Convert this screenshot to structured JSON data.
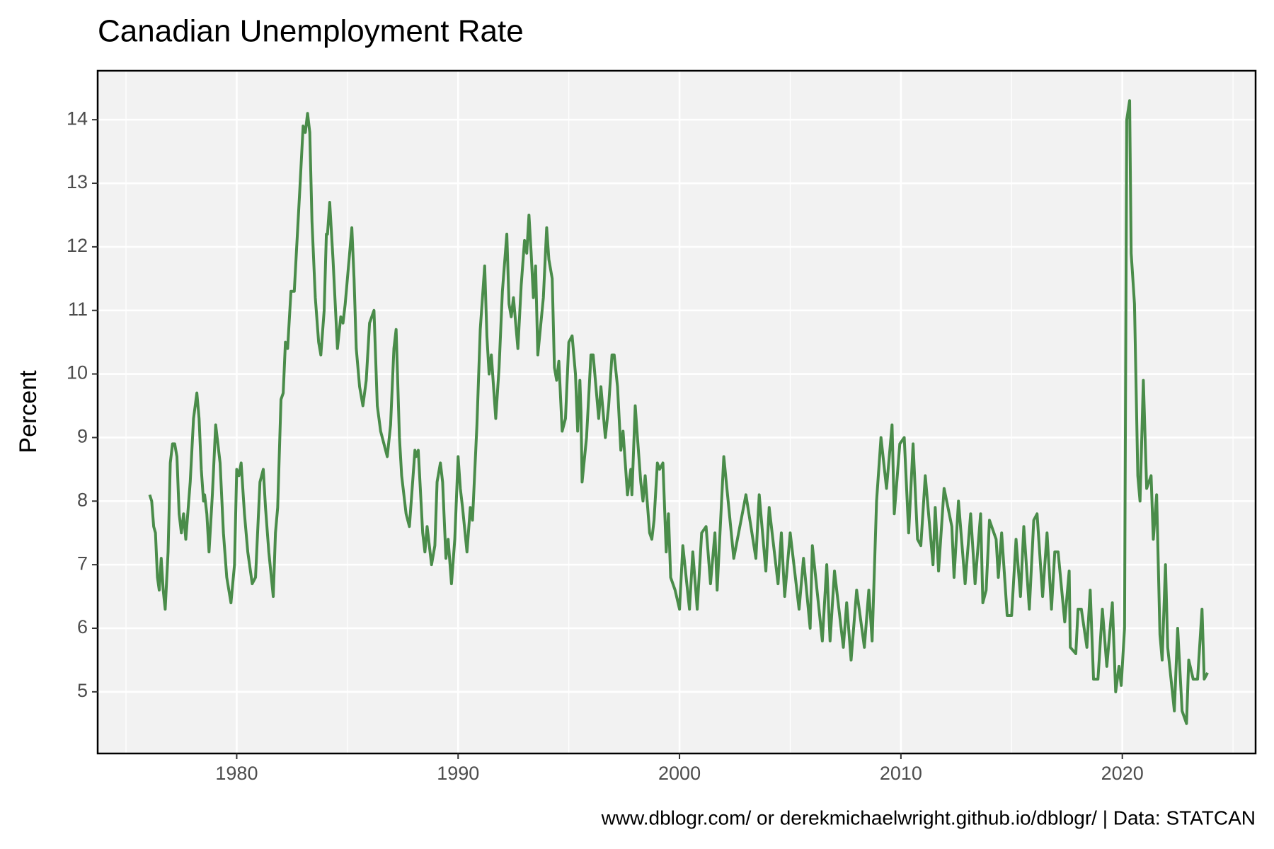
{
  "chart_data": {
    "type": "line",
    "title": "Canadian Unemployment Rate",
    "y_label": "Percent",
    "caption": "www.dblogr.com/ or derekmichaelwright.github.io/dblogr/ | Data: STATCAN",
    "xlim": [
      1973.72,
      2026.02
    ],
    "ylim": [
      4.03,
      14.77
    ],
    "xticks": [
      1980,
      1990,
      2000,
      2010,
      2020
    ],
    "x_minor_ticks": [
      1975,
      1985,
      1995,
      2005,
      2015,
      2025
    ],
    "yticks": [
      5,
      6,
      7,
      8,
      9,
      10,
      11,
      12,
      13,
      14
    ],
    "grid": true,
    "series": [
      {
        "color": "#4a8c4a",
        "x": [
          1976.07,
          1976.16,
          1976.25,
          1976.33,
          1976.42,
          1976.5,
          1976.59,
          1976.68,
          1976.77,
          1976.9,
          1977.0,
          1977.1,
          1977.2,
          1977.3,
          1977.4,
          1977.5,
          1977.6,
          1977.7,
          1977.9,
          1978.05,
          1978.2,
          1978.3,
          1978.4,
          1978.5,
          1978.55,
          1978.65,
          1978.75,
          1978.9,
          1979.05,
          1979.15,
          1979.25,
          1979.4,
          1979.55,
          1979.74,
          1979.9,
          1980.0,
          1980.1,
          1980.2,
          1980.35,
          1980.5,
          1980.7,
          1980.85,
          1981.05,
          1981.2,
          1981.3,
          1981.45,
          1981.65,
          1981.75,
          1981.85,
          1982.0,
          1982.1,
          1982.2,
          1982.3,
          1982.45,
          1982.6,
          1982.85,
          1983.0,
          1983.1,
          1983.2,
          1983.3,
          1983.4,
          1983.55,
          1983.7,
          1983.8,
          1983.95,
          1984.05,
          1984.1,
          1984.2,
          1984.35,
          1984.55,
          1984.7,
          1984.8,
          1984.9,
          1985.05,
          1985.2,
          1985.3,
          1985.4,
          1985.55,
          1985.7,
          1985.85,
          1986.0,
          1986.2,
          1986.35,
          1986.5,
          1986.65,
          1986.8,
          1986.95,
          1987.1,
          1987.2,
          1987.35,
          1987.45,
          1987.65,
          1987.8,
          1988.05,
          1988.1,
          1988.2,
          1988.4,
          1988.5,
          1988.6,
          1988.8,
          1988.95,
          1989.05,
          1989.2,
          1989.3,
          1989.45,
          1989.55,
          1989.7,
          1989.85,
          1990.0,
          1990.1,
          1990.2,
          1990.4,
          1990.55,
          1990.65,
          1990.85,
          1991.0,
          1991.2,
          1991.3,
          1991.4,
          1991.5,
          1991.7,
          1991.85,
          1992.0,
          1992.2,
          1992.3,
          1992.4,
          1992.5,
          1992.7,
          1992.85,
          1993.0,
          1993.1,
          1993.2,
          1993.3,
          1993.4,
          1993.5,
          1993.6,
          1993.85,
          1994.0,
          1994.1,
          1994.25,
          1994.35,
          1994.45,
          1994.55,
          1994.7,
          1994.85,
          1995.0,
          1995.15,
          1995.3,
          1995.4,
          1995.5,
          1995.55,
          1995.6,
          1995.8,
          1996.0,
          1996.1,
          1996.25,
          1996.35,
          1996.45,
          1996.65,
          1996.8,
          1996.95,
          1997.05,
          1997.2,
          1997.35,
          1997.45,
          1997.65,
          1997.8,
          1997.85,
          1998.0,
          1998.1,
          1998.25,
          1998.35,
          1998.45,
          1998.65,
          1998.75,
          1998.85,
          1999.0,
          1999.1,
          1999.25,
          1999.4,
          1999.5,
          1999.6,
          1999.8,
          2000.0,
          2000.15,
          2000.45,
          2000.6,
          2000.8,
          2001.0,
          2001.2,
          2001.4,
          2001.6,
          2001.7,
          2002.0,
          2002.45,
          2003.0,
          2003.45,
          2003.6,
          2003.9,
          2004.05,
          2004.45,
          2004.6,
          2004.75,
          2005.0,
          2005.4,
          2005.6,
          2005.9,
          2006.0,
          2006.45,
          2006.65,
          2006.8,
          2007.0,
          2007.4,
          2007.55,
          2007.75,
          2008.0,
          2008.35,
          2008.55,
          2008.7,
          2008.9,
          2009.1,
          2009.35,
          2009.6,
          2009.7,
          2009.95,
          2010.15,
          2010.35,
          2010.55,
          2010.75,
          2010.9,
          2011.1,
          2011.45,
          2011.55,
          2011.7,
          2011.95,
          2012.3,
          2012.4,
          2012.6,
          2012.9,
          2013.15,
          2013.35,
          2013.6,
          2013.7,
          2013.85,
          2014.0,
          2014.3,
          2014.4,
          2014.55,
          2014.8,
          2015.0,
          2015.2,
          2015.4,
          2015.55,
          2015.8,
          2016.0,
          2016.15,
          2016.4,
          2016.6,
          2016.8,
          2016.95,
          2017.1,
          2017.4,
          2017.6,
          2017.65,
          2017.9,
          2018.0,
          2018.15,
          2018.4,
          2018.55,
          2018.7,
          2018.9,
          2019.1,
          2019.3,
          2019.55,
          2019.7,
          2019.85,
          2019.95,
          2020.1,
          2020.2,
          2020.33,
          2020.4,
          2020.55,
          2020.7,
          2020.8,
          2020.95,
          2021.1,
          2021.3,
          2021.4,
          2021.55,
          2021.7,
          2021.8,
          2021.95,
          2022.05,
          2022.35,
          2022.5,
          2022.7,
          2022.9,
          2023.0,
          2023.2,
          2023.4,
          2023.6,
          2023.7,
          2023.85
        ],
        "values": [
          8.1,
          8.0,
          7.6,
          7.5,
          6.8,
          6.6,
          7.1,
          6.6,
          6.3,
          7.2,
          8.6,
          8.9,
          8.9,
          8.7,
          7.8,
          7.5,
          7.8,
          7.4,
          8.3,
          9.3,
          9.7,
          9.3,
          8.5,
          8.0,
          8.1,
          7.8,
          7.2,
          8.1,
          9.2,
          8.9,
          8.6,
          7.5,
          6.8,
          6.4,
          7.0,
          8.5,
          8.4,
          8.6,
          7.8,
          7.2,
          6.7,
          6.8,
          8.3,
          8.5,
          7.9,
          7.2,
          6.5,
          7.5,
          7.9,
          9.6,
          9.7,
          10.5,
          10.4,
          11.3,
          11.3,
          12.9,
          13.9,
          13.8,
          14.1,
          13.8,
          12.4,
          11.2,
          10.5,
          10.3,
          11.0,
          12.2,
          12.2,
          12.7,
          11.8,
          10.4,
          10.9,
          10.8,
          11.1,
          11.7,
          12.3,
          11.5,
          10.4,
          9.8,
          9.5,
          9.9,
          10.8,
          11.0,
          9.5,
          9.1,
          8.9,
          8.7,
          9.2,
          10.4,
          10.7,
          9.0,
          8.4,
          7.8,
          7.6,
          8.8,
          8.7,
          8.8,
          7.5,
          7.2,
          7.6,
          7.0,
          7.3,
          8.3,
          8.6,
          8.3,
          7.1,
          7.4,
          6.7,
          7.4,
          8.7,
          8.2,
          7.9,
          7.2,
          7.9,
          7.7,
          9.2,
          10.7,
          11.7,
          10.6,
          10.0,
          10.3,
          9.3,
          10.1,
          11.3,
          12.2,
          11.1,
          10.9,
          11.2,
          10.4,
          11.4,
          12.1,
          11.9,
          12.5,
          11.9,
          11.2,
          11.7,
          10.3,
          11.2,
          12.3,
          11.8,
          11.5,
          10.1,
          9.9,
          10.2,
          9.1,
          9.3,
          10.5,
          10.6,
          10.0,
          9.1,
          9.9,
          9.4,
          8.3,
          9.0,
          10.3,
          10.3,
          9.7,
          9.3,
          9.8,
          9.0,
          9.5,
          10.3,
          10.3,
          9.8,
          8.8,
          9.1,
          8.1,
          8.5,
          8.1,
          9.5,
          9.0,
          8.3,
          8.0,
          8.4,
          7.5,
          7.4,
          7.7,
          8.6,
          8.5,
          8.6,
          7.2,
          7.8,
          6.8,
          6.6,
          6.3,
          7.3,
          6.3,
          7.2,
          6.3,
          7.5,
          7.6,
          6.7,
          7.5,
          6.6,
          8.7,
          7.1,
          8.1,
          7.1,
          8.1,
          6.9,
          7.9,
          6.7,
          7.5,
          6.5,
          7.5,
          6.3,
          7.1,
          6.0,
          7.3,
          5.8,
          7.0,
          5.8,
          6.9,
          5.7,
          6.4,
          5.5,
          6.6,
          5.7,
          6.6,
          5.8,
          8.0,
          9.0,
          8.2,
          9.2,
          7.8,
          8.9,
          9.0,
          7.5,
          8.9,
          7.4,
          7.3,
          8.4,
          7.0,
          7.9,
          6.9,
          8.2,
          7.6,
          6.8,
          8.0,
          6.7,
          7.8,
          6.7,
          7.8,
          6.4,
          6.6,
          7.7,
          7.4,
          6.8,
          7.5,
          6.2,
          6.2,
          7.4,
          6.5,
          7.6,
          6.3,
          7.7,
          7.8,
          6.5,
          7.5,
          6.3,
          7.2,
          7.2,
          6.1,
          6.9,
          5.7,
          5.6,
          6.3,
          6.3,
          5.7,
          6.6,
          5.2,
          5.2,
          6.3,
          5.4,
          6.4,
          5.0,
          5.4,
          5.1,
          6.0,
          14.0,
          14.3,
          11.9,
          11.1,
          8.4,
          8.0,
          9.9,
          8.2,
          8.4,
          7.4,
          8.1,
          5.9,
          5.5,
          7.0,
          5.7,
          4.7,
          6.0,
          4.7,
          4.5,
          5.5,
          5.2,
          5.2,
          6.3,
          5.2,
          5.3
        ]
      }
    ]
  }
}
